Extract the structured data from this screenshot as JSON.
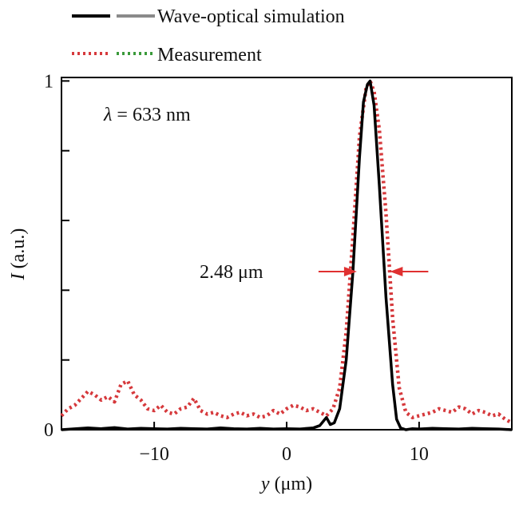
{
  "chart_data": {
    "type": "line",
    "xlabel_var": "y",
    "xlabel_unit": " (μm)",
    "ylabel_var": "I",
    "ylabel_unit": " (a.u.)",
    "xlim": [
      -17,
      17
    ],
    "ylim": [
      0,
      1.01
    ],
    "x_ticks": [
      -10,
      0,
      10
    ],
    "x_tick_labels": [
      "−10",
      "0",
      "10"
    ],
    "y_ticks": [
      0,
      0.2,
      0.4,
      0.6,
      0.8,
      1
    ],
    "y_tick_labels": [
      "0",
      "",
      "",
      "",
      "",
      "1"
    ],
    "grid": false,
    "legend": [
      {
        "label": "Wave-optical simulation",
        "colors": [
          "#000000",
          "#8a8a8a"
        ],
        "dash": "solid"
      },
      {
        "label": "Measurement",
        "colors": [
          "#d6393c",
          "#3a9a3a"
        ],
        "dash": "dotted"
      }
    ],
    "annotations": {
      "wavelength_var": "λ",
      "wavelength_value": " = 633 nm",
      "fwhm_label": "2.48 μm",
      "fwhm_y": 0.5,
      "fwhm_x_left": 5.3,
      "fwhm_x_right": 7.8
    },
    "series": [
      {
        "name": "Wave-optical simulation",
        "color": "#000000",
        "style": "solid",
        "x": [
          -17,
          -15,
          -14,
          -13,
          -12,
          -11,
          -10,
          -9,
          -8,
          -7,
          -6,
          -5,
          -4,
          -3,
          -2,
          -1,
          0,
          1,
          2,
          2.5,
          3,
          3.3,
          3.6,
          4.0,
          4.5,
          5.0,
          5.5,
          5.8,
          6.1,
          6.3,
          6.6,
          7.0,
          7.5,
          8.0,
          8.3,
          8.6,
          9.0,
          9.5,
          10,
          11,
          12,
          13,
          14,
          15,
          16,
          17
        ],
        "y": [
          0.0,
          0.005,
          0.003,
          0.006,
          0.002,
          0.004,
          0.003,
          0.002,
          0.004,
          0.003,
          0.002,
          0.005,
          0.003,
          0.002,
          0.004,
          0.002,
          0.003,
          0.002,
          0.005,
          0.012,
          0.035,
          0.015,
          0.02,
          0.06,
          0.2,
          0.45,
          0.78,
          0.94,
          0.99,
          1.0,
          0.93,
          0.7,
          0.38,
          0.13,
          0.03,
          0.005,
          0.0,
          0.003,
          0.002,
          0.004,
          0.003,
          0.002,
          0.004,
          0.003,
          0.002,
          0.0
        ]
      },
      {
        "name": "Measurement",
        "color": "#d6393c",
        "style": "dotted",
        "x": [
          -17,
          -16.5,
          -16,
          -15.5,
          -15,
          -14.5,
          -14,
          -13.5,
          -13,
          -12.5,
          -12,
          -11.5,
          -11,
          -10.5,
          -10,
          -9.5,
          -9,
          -8.5,
          -8,
          -7.5,
          -7,
          -6.5,
          -6,
          -5.5,
          -5,
          -4.5,
          -4,
          -3.5,
          -3,
          -2.5,
          -2,
          -1.5,
          -1,
          -0.5,
          0,
          0.5,
          1,
          1.5,
          2,
          2.5,
          3,
          3.5,
          4,
          4.5,
          5,
          5.5,
          6,
          6.3,
          6.6,
          7,
          7.5,
          8,
          8.5,
          9,
          9.5,
          10,
          10.5,
          11,
          11.5,
          12,
          12.5,
          13,
          13.5,
          14,
          14.5,
          15,
          15.5,
          16,
          16.5,
          17
        ],
        "y": [
          0.04,
          0.06,
          0.07,
          0.09,
          0.11,
          0.1,
          0.085,
          0.095,
          0.08,
          0.13,
          0.14,
          0.1,
          0.085,
          0.06,
          0.055,
          0.07,
          0.05,
          0.045,
          0.06,
          0.065,
          0.09,
          0.055,
          0.045,
          0.05,
          0.04,
          0.035,
          0.045,
          0.05,
          0.04,
          0.045,
          0.035,
          0.04,
          0.055,
          0.045,
          0.06,
          0.07,
          0.065,
          0.055,
          0.06,
          0.05,
          0.04,
          0.06,
          0.12,
          0.28,
          0.55,
          0.84,
          0.98,
          1.0,
          0.97,
          0.86,
          0.62,
          0.32,
          0.12,
          0.05,
          0.035,
          0.04,
          0.045,
          0.05,
          0.06,
          0.055,
          0.05,
          0.065,
          0.06,
          0.045,
          0.055,
          0.05,
          0.04,
          0.045,
          0.03,
          0.02
        ]
      }
    ]
  }
}
